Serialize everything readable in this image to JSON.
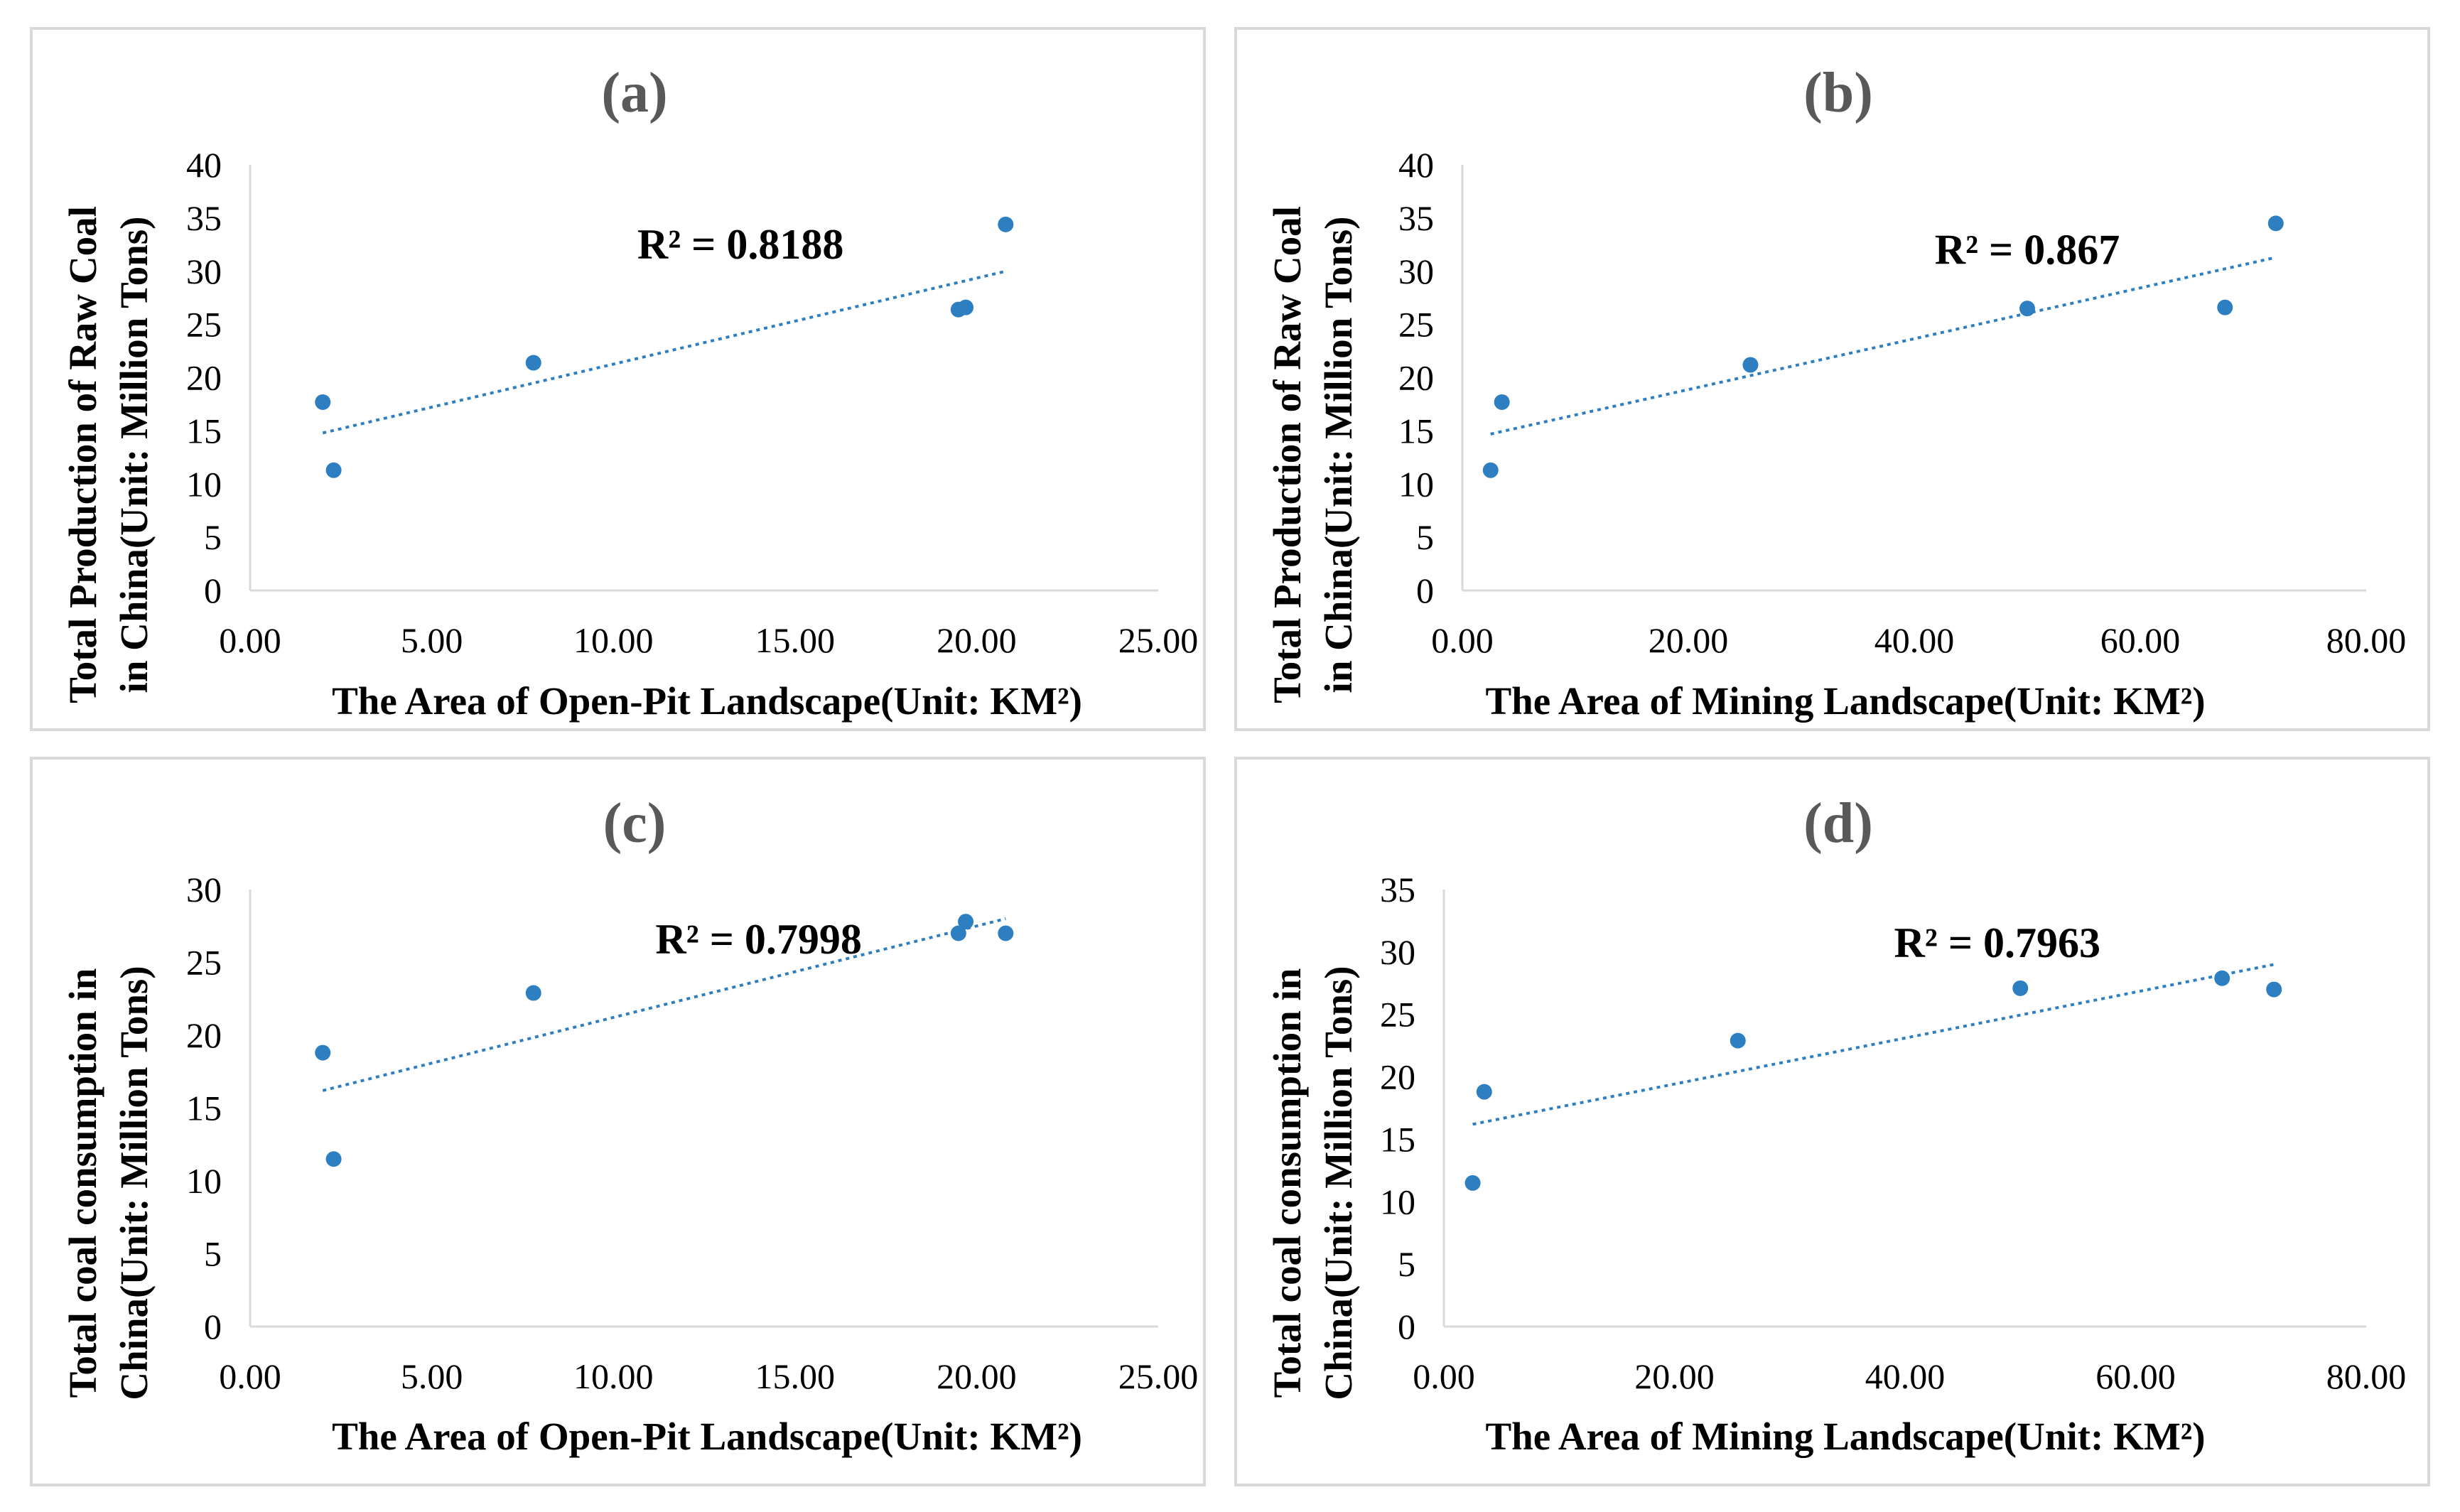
{
  "colors": {
    "points": "#2e7fc2",
    "trendline": "#2e7fc2",
    "title": "#595959",
    "border": "#d9d9d9"
  },
  "chart_data": [
    {
      "type": "scatter",
      "panel": "a",
      "title": "(a)",
      "xlabel": "The Area of Open-Pit Landscape(Unit: KM²)",
      "ylabel": [
        "Total Production of Raw Coal",
        "in China(Unit: Million Tons)"
      ],
      "xlim": [
        0,
        25
      ],
      "xstep": 5,
      "xticks": [
        "0.00",
        "5.00",
        "10.00",
        "15.00",
        "20.00",
        "25.00"
      ],
      "ylim": [
        0,
        40
      ],
      "ystep": 5,
      "yticks": [
        "0",
        "5",
        "10",
        "15",
        "20",
        "25",
        "30",
        "35",
        "40"
      ],
      "points": [
        {
          "x": 2.0,
          "y": 17.7
        },
        {
          "x": 2.3,
          "y": 11.3
        },
        {
          "x": 7.8,
          "y": 21.4
        },
        {
          "x": 19.5,
          "y": 26.4
        },
        {
          "x": 19.7,
          "y": 26.6
        },
        {
          "x": 20.8,
          "y": 34.4
        }
      ],
      "trendline": {
        "x1": 2.0,
        "y1": 14.8,
        "x2": 20.8,
        "y2": 30.0
      },
      "r2_label": "R² = 0.8188",
      "r2_anchor": {
        "x": 13.5,
        "y": 31.2
      }
    },
    {
      "type": "scatter",
      "panel": "b",
      "title": "(b)",
      "xlabel": "The Area of Mining Landscape(Unit: KM²)",
      "ylabel": [
        "Total Production of Raw Coal",
        "in China(Unit: Million Tons)"
      ],
      "xlim": [
        0,
        80
      ],
      "xstep": 20,
      "xticks": [
        "0.00",
        "20.00",
        "40.00",
        "60.00",
        "80.00"
      ],
      "ylim": [
        0,
        40
      ],
      "ystep": 5,
      "yticks": [
        "0",
        "5",
        "10",
        "15",
        "20",
        "25",
        "30",
        "35",
        "40"
      ],
      "points": [
        {
          "x": 2.5,
          "y": 11.3
        },
        {
          "x": 3.5,
          "y": 17.7
        },
        {
          "x": 25.5,
          "y": 21.2
        },
        {
          "x": 50.0,
          "y": 26.5
        },
        {
          "x": 67.5,
          "y": 26.6
        },
        {
          "x": 72.0,
          "y": 34.5
        }
      ],
      "trendline": {
        "x1": 2.5,
        "y1": 14.7,
        "x2": 72.0,
        "y2": 31.3
      },
      "r2_label": "R² = 0.867",
      "r2_anchor": {
        "x": 50.0,
        "y": 30.7
      }
    },
    {
      "type": "scatter",
      "panel": "c",
      "title": "(c)",
      "xlabel": "The Area of Open-Pit Landscape(Unit: KM²)",
      "ylabel": [
        "Total coal consumption in",
        "China(Unit: Million Tons)"
      ],
      "xlim": [
        0,
        25
      ],
      "xstep": 5,
      "xticks": [
        "0.00",
        "5.00",
        "10.00",
        "15.00",
        "20.00",
        "25.00"
      ],
      "ylim": [
        0,
        30
      ],
      "ystep": 5,
      "yticks": [
        "0",
        "5",
        "10",
        "15",
        "20",
        "25",
        "30"
      ],
      "points": [
        {
          "x": 2.0,
          "y": 18.8
        },
        {
          "x": 2.3,
          "y": 11.5
        },
        {
          "x": 7.8,
          "y": 22.9
        },
        {
          "x": 19.5,
          "y": 27.0
        },
        {
          "x": 19.7,
          "y": 27.8
        },
        {
          "x": 20.8,
          "y": 27.0
        }
      ],
      "trendline": {
        "x1": 2.0,
        "y1": 16.2,
        "x2": 20.8,
        "y2": 28.0
      },
      "r2_label": "R² = 0.7998",
      "r2_anchor": {
        "x": 14.0,
        "y": 25.6
      }
    },
    {
      "type": "scatter",
      "panel": "d",
      "title": "(d)",
      "xlabel": "The Area of Mining Landscape(Unit: KM²)",
      "ylabel": [
        "Total coal consumption in",
        "China(Unit: Million Tons)"
      ],
      "xlim": [
        0,
        80
      ],
      "xstep": 20,
      "xticks": [
        "0.00",
        "20.00",
        "40.00",
        "60.00",
        "80.00"
      ],
      "ylim": [
        0,
        35
      ],
      "ystep": 5,
      "yticks": [
        "0",
        "5",
        "10",
        "15",
        "20",
        "25",
        "30",
        "35"
      ],
      "points": [
        {
          "x": 2.5,
          "y": 11.5
        },
        {
          "x": 3.5,
          "y": 18.8
        },
        {
          "x": 25.5,
          "y": 22.9
        },
        {
          "x": 50.0,
          "y": 27.1
        },
        {
          "x": 67.5,
          "y": 27.9
        },
        {
          "x": 72.0,
          "y": 27.0
        }
      ],
      "trendline": {
        "x1": 2.5,
        "y1": 16.2,
        "x2": 72.0,
        "y2": 29.0
      },
      "r2_label": "R² = 0.7963",
      "r2_anchor": {
        "x": 48.0,
        "y": 29.6
      }
    }
  ]
}
